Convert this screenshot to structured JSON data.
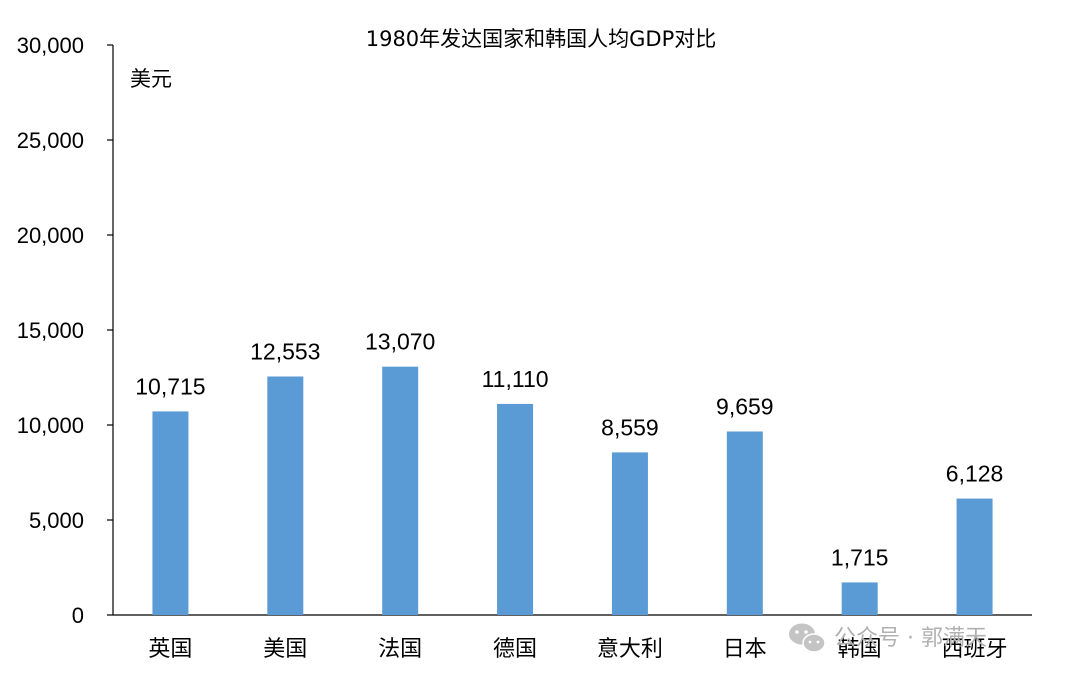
{
  "chart_data": {
    "type": "bar",
    "title": "1980年发达国家和韩国人均GDP对比",
    "ylabel": "美元",
    "xlabel": "",
    "categories": [
      "英国",
      "美国",
      "法国",
      "德国",
      "意大利",
      "日本",
      "韩国",
      "西班牙"
    ],
    "values": [
      10715,
      12553,
      13070,
      11110,
      8559,
      9659,
      1715,
      6128
    ],
    "data_labels": [
      "10,715",
      "12,553",
      "13,070",
      "11,110",
      "8,559",
      "9,659",
      "1,715",
      "6,128"
    ],
    "ylim": [
      0,
      30000
    ],
    "yticks": [
      0,
      5000,
      10000,
      15000,
      20000,
      25000,
      30000
    ],
    "ytick_labels": [
      "0",
      "5,000",
      "10,000",
      "15,000",
      "20,000",
      "25,000",
      "30,000"
    ],
    "bar_color": "#5b9bd5",
    "grid": false,
    "legend": "none"
  },
  "watermark": {
    "icon": "wechat-icon",
    "text": "公众号 · 郭满天"
  }
}
